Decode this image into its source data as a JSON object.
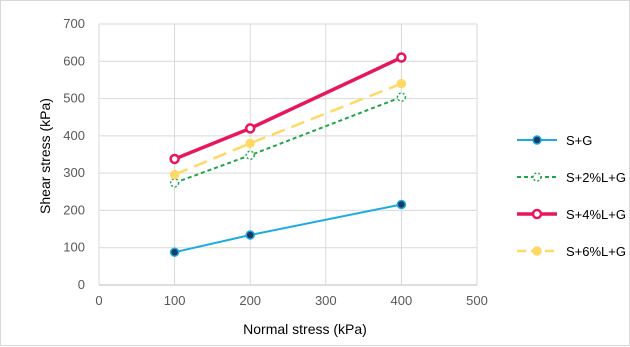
{
  "chart_data": {
    "type": "line",
    "title": "",
    "xlabel": "Normal stress (kPa)",
    "ylabel": "Shear stress (kPa)",
    "xlim": [
      0,
      500
    ],
    "ylim": [
      0,
      700
    ],
    "x_ticks": [
      0,
      100,
      200,
      300,
      400,
      500
    ],
    "y_ticks": [
      0,
      100,
      200,
      300,
      400,
      500,
      600,
      700
    ],
    "grid": "vertical and horizontal",
    "legend_position": "right",
    "series": [
      {
        "name": "S+G",
        "x": [
          100,
          200,
          400
        ],
        "y": [
          88,
          134,
          216
        ],
        "color": "#1aabe0",
        "line_style": "solid",
        "marker": "filled circle, dark navy fill",
        "marker_fill": "#1f3864",
        "marker_stroke": "#1aabe0"
      },
      {
        "name": "S+2%L+G",
        "x": [
          100,
          200,
          400
        ],
        "y": [
          274,
          348,
          504
        ],
        "color": "#1fa64a",
        "line_style": "dashed",
        "marker": "hollow circle, dashed outline",
        "marker_fill": "#ffffff",
        "marker_stroke": "#1fa64a"
      },
      {
        "name": "S+4%L+G",
        "x": [
          100,
          200,
          400
        ],
        "y": [
          338,
          420,
          610
        ],
        "color": "#e8175d",
        "line_style": "solid thick",
        "marker": "hollow circle, thick outline",
        "marker_fill": "#ffffff",
        "marker_stroke": "#e8175d"
      },
      {
        "name": "S+6%L+G",
        "x": [
          100,
          200,
          400
        ],
        "y": [
          296,
          380,
          540
        ],
        "color": "#ffd966",
        "line_style": "long dash",
        "marker": "filled circle",
        "marker_fill": "#ffd966",
        "marker_stroke": "#ffd966"
      }
    ]
  }
}
